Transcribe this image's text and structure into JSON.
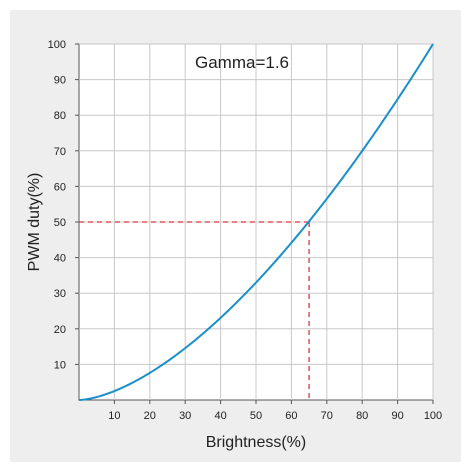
{
  "chart_data": {
    "type": "line",
    "annotation": "Gamma=1.6",
    "xlabel": "Brightness(%)",
    "ylabel": "PWM duty(%)",
    "xlim": [
      0,
      100
    ],
    "ylim": [
      0,
      100
    ],
    "x_ticks": [
      10,
      20,
      30,
      40,
      50,
      60,
      70,
      80,
      90,
      100
    ],
    "y_ticks": [
      10,
      20,
      30,
      40,
      50,
      60,
      70,
      80,
      90,
      100
    ],
    "grid": true,
    "gamma": 1.6,
    "series": [
      {
        "color": "#1a8fc9",
        "x": [
          0,
          10,
          20,
          30,
          40,
          50,
          60,
          65,
          70,
          80,
          90,
          100
        ],
        "y": [
          0,
          2.5,
          7.6,
          14.6,
          23.1,
          33.0,
          44.2,
          50.2,
          56.5,
          70.0,
          84.5,
          100
        ]
      }
    ],
    "reference": {
      "x": 65,
      "y": 50,
      "color": "#d9363e",
      "style": "dashed"
    }
  }
}
